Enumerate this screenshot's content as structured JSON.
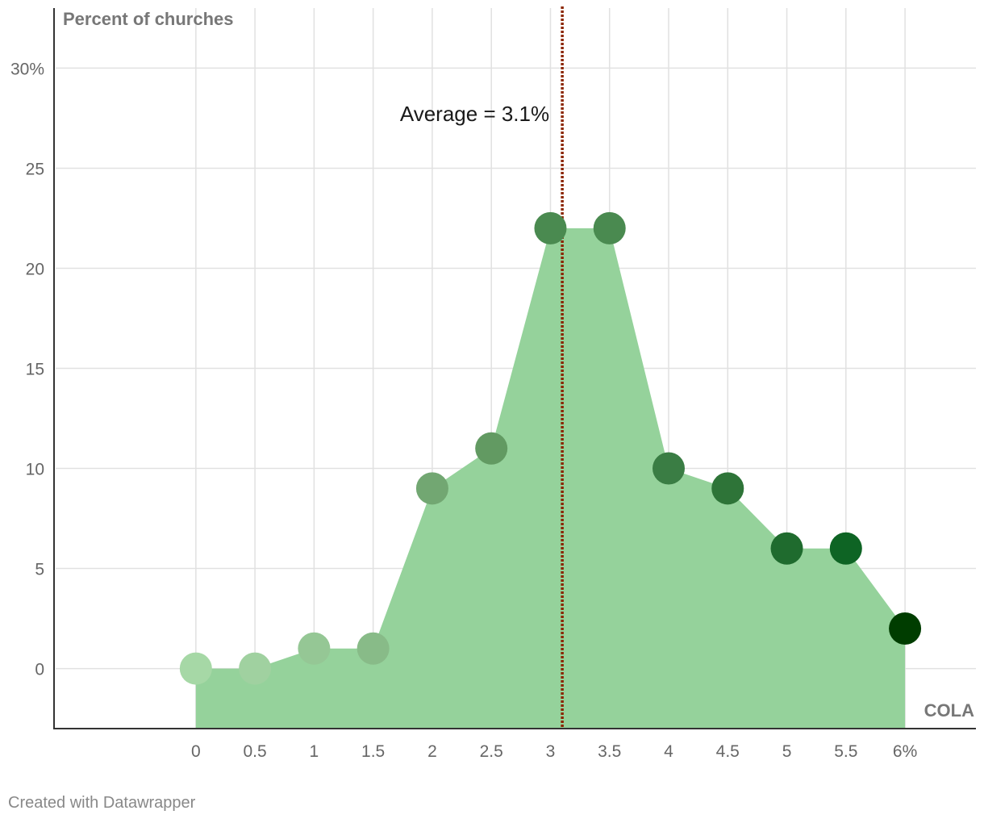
{
  "chart_data": {
    "type": "area",
    "x": [
      0,
      0.5,
      1,
      1.5,
      2,
      2.5,
      3,
      3.5,
      4,
      4.5,
      5,
      5.5,
      6
    ],
    "values": [
      0,
      0,
      1,
      1,
      9,
      11,
      22,
      22,
      10,
      9,
      6,
      6,
      2
    ],
    "x_tick_labels": [
      "0",
      "0.5",
      "1",
      "1.5",
      "2",
      "2.5",
      "3",
      "3.5",
      "4",
      "4.5",
      "5",
      "5.5",
      "6%"
    ],
    "y_ticks": [
      0,
      5,
      10,
      15,
      20,
      25,
      30
    ],
    "y_tick_labels": [
      "0",
      "5",
      "10",
      "15",
      "20",
      "25",
      "30%"
    ],
    "xlabel": "COLA",
    "ylabel": "Percent of churches",
    "xlim": [
      -1.2,
      6.6
    ],
    "ylim": [
      -3,
      33
    ],
    "grid": true,
    "average": {
      "value": 3.1,
      "label": "Average = 3.1%"
    },
    "colors": {
      "area": "#95d29b",
      "grid": "#e1e1e1",
      "axis": "#333333",
      "average_line": "#8b2500",
      "points": [
        "#a6d8a6",
        "#a0d1a0",
        "#95c795",
        "#88bb88",
        "#72a772",
        "#629a62",
        "#4a8a50",
        "#4a8a50",
        "#3a7d44",
        "#2e7438",
        "#1f6b2e",
        "#0e6424",
        "#003d00"
      ]
    }
  },
  "footer": "Created with Datawrapper"
}
